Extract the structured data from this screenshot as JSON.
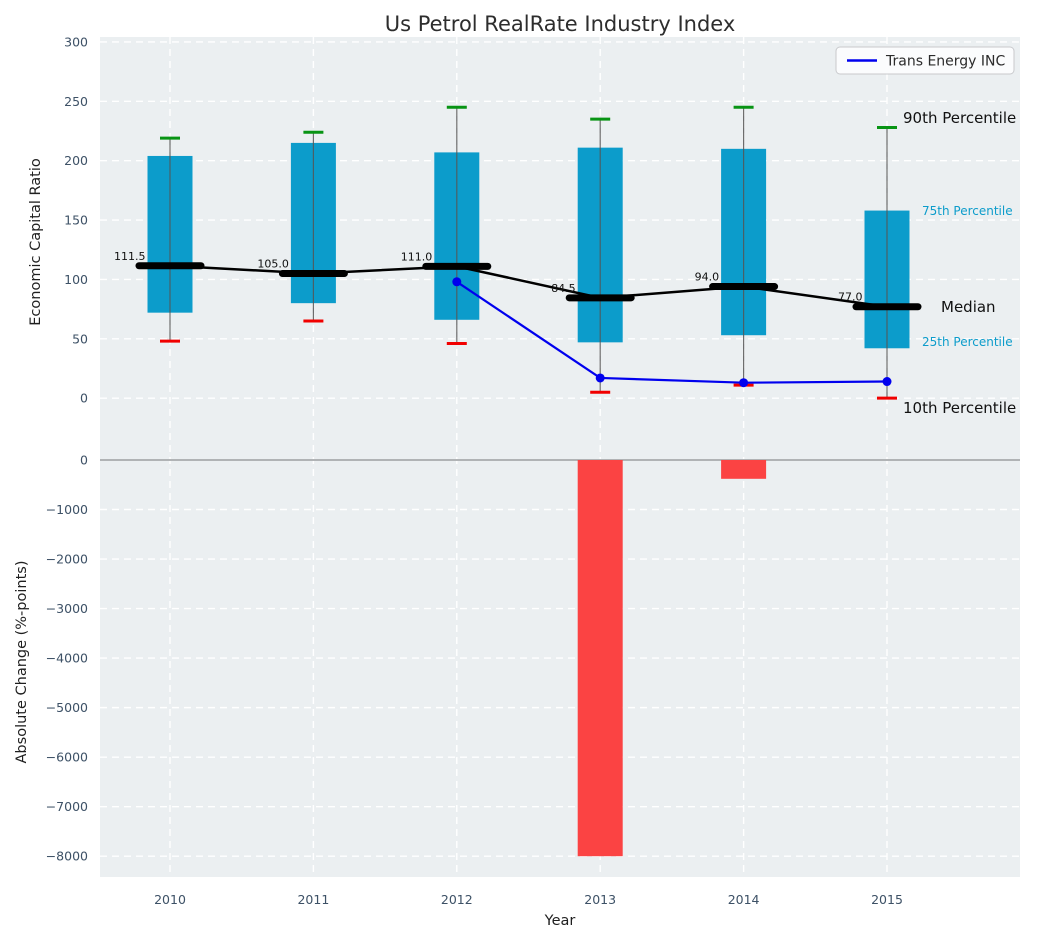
{
  "title": "Us Petrol RealRate Industry Index",
  "legend": {
    "label": "Trans Energy INC"
  },
  "right_labels": {
    "p90": "90th Percentile",
    "p75": "75th Percentile",
    "median": "Median",
    "p25": "25th Percentile",
    "p10": "10th Percentile"
  },
  "colors": {
    "panel_background": "#ebeff1",
    "grid": "#ffffff",
    "box": "#0c9ccb",
    "whisker": "#555555",
    "cap_high": "#089414",
    "cap_low": "#f10000",
    "median": "#000000",
    "company_line": "#0000ee",
    "bar_negative": "#fb4343",
    "tick_label": "#3d5166",
    "median_label": "#111111",
    "zero_line": "#b0b3b5",
    "percentile_accent": "#0c9ccb"
  },
  "chart_data": [
    {
      "type": "box-percentile-timeseries",
      "title": "Us Petrol RealRate Industry Index",
      "ylabel": "Economic Capital Ratio",
      "categories": [
        "2010",
        "2011",
        "2012",
        "2013",
        "2014",
        "2015"
      ],
      "yticks": [
        0,
        50,
        100,
        150,
        200,
        250,
        300
      ],
      "ylim": [
        -42,
        304.2
      ],
      "grid": true,
      "legend_position": "upper right",
      "series": [
        {
          "name": "90th Percentile",
          "values": [
            219,
            224,
            245,
            235,
            245,
            228
          ]
        },
        {
          "name": "75th Percentile",
          "values": [
            204,
            215,
            207,
            211,
            210,
            158
          ]
        },
        {
          "name": "Median",
          "values": [
            111.5,
            105.0,
            111.0,
            84.5,
            94.0,
            77.0
          ]
        },
        {
          "name": "25th Percentile",
          "values": [
            72,
            80,
            66,
            47,
            53,
            42
          ]
        },
        {
          "name": "10th Percentile",
          "values": [
            48,
            65,
            46,
            5,
            11,
            0
          ]
        },
        {
          "name": "Trans Energy INC",
          "values": [
            null,
            null,
            98,
            17,
            13,
            14
          ]
        }
      ],
      "median_labels": [
        "111.5",
        "105.0",
        "111.0",
        "84.5",
        "94.0",
        "77.0"
      ]
    },
    {
      "type": "bar",
      "ylabel": "Absolute Change (%-points)",
      "xlabel": "Year",
      "categories": [
        "2010",
        "2011",
        "2012",
        "2013",
        "2014",
        "2015"
      ],
      "values": [
        0,
        0,
        0,
        -8000,
        -380,
        0
      ],
      "yticks": [
        0,
        -1000,
        -2000,
        -3000,
        -4000,
        -5000,
        -6000,
        -7000,
        -8000
      ],
      "ytick_labels": [
        "0",
        "−1000",
        "−2000",
        "−3000",
        "−4000",
        "−5000",
        "−6000",
        "−7000",
        "−8000"
      ],
      "ylim": [
        -8420,
        242
      ],
      "grid": true
    }
  ]
}
